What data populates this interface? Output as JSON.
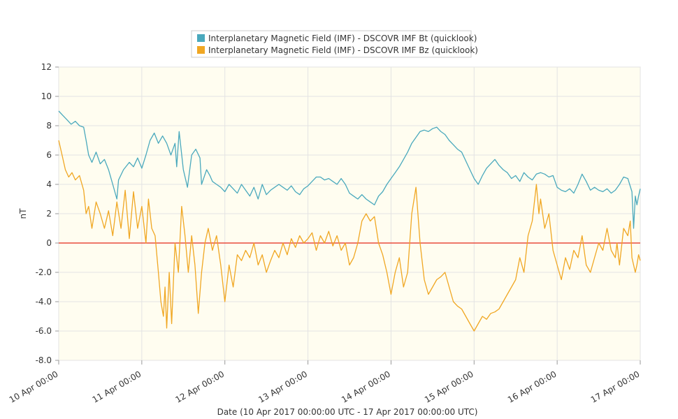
{
  "legend": {
    "items": [
      {
        "label": "Interplanetary Magnetic Field (IMF) - DSCOVR IMF Bt (quicklook)",
        "color": "#4aa9bd"
      },
      {
        "label": "Interplanetary Magnetic Field (IMF) - DSCOVR IMF Bz (quicklook)",
        "color": "#f0a723"
      }
    ]
  },
  "chart_data": {
    "type": "line",
    "xlabel": "Date (10 Apr 2017 00:00:00 UTC - 17 Apr 2017 00:00:00 UTC)",
    "ylabel": "nT",
    "ylim": [
      -8,
      12
    ],
    "xlim": [
      0,
      7
    ],
    "x_unit": "days from 10 Apr 2017 00:00 UTC",
    "x_ticks": [
      0,
      1,
      2,
      3,
      4,
      5,
      6,
      7
    ],
    "x_tick_labels": [
      "10 Apr 00:00",
      "11 Apr 00:00",
      "12 Apr 00:00",
      "13 Apr 00:00",
      "14 Apr 00:00",
      "15 Apr 00:00",
      "16 Apr 00:00",
      "17 Apr 00:00"
    ],
    "y_ticks": [
      12,
      10,
      8,
      6,
      4,
      2,
      0,
      -2,
      -4,
      -6,
      -8
    ],
    "y_tick_labels": [
      "12",
      "10",
      "8",
      "6",
      "4",
      "2",
      "0",
      "-2.0",
      "-4.0",
      "-6.0",
      "-8.0"
    ],
    "grid": true,
    "background": "#fffdf0",
    "zero_line_color": "#e84b3c",
    "legend_position": "top-center",
    "series": [
      {
        "name": "Interplanetary Magnetic Field (IMF) - DSCOVR IMF Bt (quicklook)",
        "color": "#4aa9bd",
        "points": [
          [
            0.0,
            9.0
          ],
          [
            0.05,
            8.7
          ],
          [
            0.1,
            8.4
          ],
          [
            0.15,
            8.1
          ],
          [
            0.2,
            8.3
          ],
          [
            0.25,
            8.0
          ],
          [
            0.3,
            7.9
          ],
          [
            0.33,
            7.0
          ],
          [
            0.36,
            6.0
          ],
          [
            0.4,
            5.5
          ],
          [
            0.45,
            6.2
          ],
          [
            0.5,
            5.4
          ],
          [
            0.55,
            5.7
          ],
          [
            0.6,
            5.0
          ],
          [
            0.65,
            4.0
          ],
          [
            0.7,
            3.0
          ],
          [
            0.72,
            4.3
          ],
          [
            0.78,
            5.0
          ],
          [
            0.85,
            5.5
          ],
          [
            0.9,
            5.2
          ],
          [
            0.95,
            5.8
          ],
          [
            1.0,
            5.1
          ],
          [
            1.05,
            6.0
          ],
          [
            1.1,
            7.0
          ],
          [
            1.15,
            7.5
          ],
          [
            1.2,
            6.8
          ],
          [
            1.25,
            7.3
          ],
          [
            1.3,
            6.8
          ],
          [
            1.35,
            6.0
          ],
          [
            1.4,
            6.8
          ],
          [
            1.42,
            5.2
          ],
          [
            1.45,
            7.6
          ],
          [
            1.5,
            5.0
          ],
          [
            1.55,
            3.8
          ],
          [
            1.6,
            6.0
          ],
          [
            1.65,
            6.4
          ],
          [
            1.7,
            5.8
          ],
          [
            1.72,
            4.0
          ],
          [
            1.78,
            5.0
          ],
          [
            1.82,
            4.6
          ],
          [
            1.85,
            4.2
          ],
          [
            1.9,
            4.0
          ],
          [
            1.95,
            3.8
          ],
          [
            2.0,
            3.5
          ],
          [
            2.05,
            4.0
          ],
          [
            2.1,
            3.7
          ],
          [
            2.15,
            3.4
          ],
          [
            2.2,
            4.0
          ],
          [
            2.25,
            3.6
          ],
          [
            2.3,
            3.2
          ],
          [
            2.35,
            3.8
          ],
          [
            2.4,
            3.0
          ],
          [
            2.45,
            4.0
          ],
          [
            2.5,
            3.3
          ],
          [
            2.55,
            3.6
          ],
          [
            2.6,
            3.8
          ],
          [
            2.65,
            4.0
          ],
          [
            2.7,
            3.8
          ],
          [
            2.75,
            3.6
          ],
          [
            2.8,
            3.9
          ],
          [
            2.85,
            3.5
          ],
          [
            2.9,
            3.3
          ],
          [
            2.95,
            3.7
          ],
          [
            3.0,
            3.9
          ],
          [
            3.05,
            4.2
          ],
          [
            3.1,
            4.5
          ],
          [
            3.15,
            4.5
          ],
          [
            3.2,
            4.3
          ],
          [
            3.25,
            4.4
          ],
          [
            3.3,
            4.2
          ],
          [
            3.35,
            4.0
          ],
          [
            3.4,
            4.4
          ],
          [
            3.45,
            4.0
          ],
          [
            3.5,
            3.4
          ],
          [
            3.55,
            3.2
          ],
          [
            3.6,
            3.0
          ],
          [
            3.65,
            3.3
          ],
          [
            3.7,
            3.0
          ],
          [
            3.75,
            2.8
          ],
          [
            3.8,
            2.6
          ],
          [
            3.85,
            3.2
          ],
          [
            3.9,
            3.5
          ],
          [
            3.95,
            4.0
          ],
          [
            4.0,
            4.4
          ],
          [
            4.05,
            4.8
          ],
          [
            4.1,
            5.2
          ],
          [
            4.15,
            5.7
          ],
          [
            4.2,
            6.2
          ],
          [
            4.25,
            6.8
          ],
          [
            4.3,
            7.2
          ],
          [
            4.35,
            7.6
          ],
          [
            4.4,
            7.7
          ],
          [
            4.45,
            7.6
          ],
          [
            4.5,
            7.8
          ],
          [
            4.55,
            7.9
          ],
          [
            4.6,
            7.6
          ],
          [
            4.65,
            7.4
          ],
          [
            4.7,
            7.0
          ],
          [
            4.75,
            6.7
          ],
          [
            4.8,
            6.4
          ],
          [
            4.85,
            6.2
          ],
          [
            4.9,
            5.6
          ],
          [
            4.95,
            5.0
          ],
          [
            5.0,
            4.4
          ],
          [
            5.05,
            4.0
          ],
          [
            5.1,
            4.6
          ],
          [
            5.15,
            5.1
          ],
          [
            5.2,
            5.4
          ],
          [
            5.25,
            5.7
          ],
          [
            5.3,
            5.3
          ],
          [
            5.35,
            5.0
          ],
          [
            5.4,
            4.8
          ],
          [
            5.45,
            4.4
          ],
          [
            5.5,
            4.6
          ],
          [
            5.55,
            4.2
          ],
          [
            5.6,
            4.8
          ],
          [
            5.65,
            4.5
          ],
          [
            5.7,
            4.3
          ],
          [
            5.75,
            4.7
          ],
          [
            5.8,
            4.8
          ],
          [
            5.85,
            4.7
          ],
          [
            5.9,
            4.5
          ],
          [
            5.95,
            4.6
          ],
          [
            6.0,
            3.8
          ],
          [
            6.05,
            3.6
          ],
          [
            6.1,
            3.5
          ],
          [
            6.15,
            3.7
          ],
          [
            6.2,
            3.4
          ],
          [
            6.25,
            4.0
          ],
          [
            6.3,
            4.7
          ],
          [
            6.35,
            4.2
          ],
          [
            6.4,
            3.6
          ],
          [
            6.45,
            3.8
          ],
          [
            6.5,
            3.6
          ],
          [
            6.55,
            3.5
          ],
          [
            6.6,
            3.7
          ],
          [
            6.65,
            3.4
          ],
          [
            6.7,
            3.6
          ],
          [
            6.75,
            4.0
          ],
          [
            6.8,
            4.5
          ],
          [
            6.85,
            4.4
          ],
          [
            6.9,
            3.5
          ],
          [
            6.92,
            1.0
          ],
          [
            6.94,
            3.2
          ],
          [
            6.96,
            2.6
          ],
          [
            6.98,
            3.2
          ],
          [
            7.0,
            3.7
          ]
        ]
      },
      {
        "name": "Interplanetary Magnetic Field (IMF) - DSCOVR IMF Bz (quicklook)",
        "color": "#f0a723",
        "points": [
          [
            0.0,
            7.0
          ],
          [
            0.04,
            6.0
          ],
          [
            0.08,
            5.0
          ],
          [
            0.12,
            4.5
          ],
          [
            0.16,
            4.8
          ],
          [
            0.2,
            4.3
          ],
          [
            0.25,
            4.6
          ],
          [
            0.3,
            3.6
          ],
          [
            0.33,
            2.0
          ],
          [
            0.36,
            2.5
          ],
          [
            0.4,
            1.0
          ],
          [
            0.45,
            2.8
          ],
          [
            0.5,
            2.0
          ],
          [
            0.55,
            1.0
          ],
          [
            0.6,
            2.2
          ],
          [
            0.65,
            0.5
          ],
          [
            0.7,
            2.8
          ],
          [
            0.75,
            1.0
          ],
          [
            0.8,
            3.6
          ],
          [
            0.85,
            0.3
          ],
          [
            0.9,
            3.5
          ],
          [
            0.95,
            1.0
          ],
          [
            1.0,
            2.5
          ],
          [
            1.05,
            0.0
          ],
          [
            1.08,
            3.0
          ],
          [
            1.12,
            1.0
          ],
          [
            1.16,
            0.5
          ],
          [
            1.2,
            -2.0
          ],
          [
            1.23,
            -4.0
          ],
          [
            1.26,
            -5.0
          ],
          [
            1.28,
            -3.0
          ],
          [
            1.3,
            -5.8
          ],
          [
            1.33,
            -2.0
          ],
          [
            1.36,
            -5.5
          ],
          [
            1.4,
            0.0
          ],
          [
            1.44,
            -2.0
          ],
          [
            1.48,
            2.5
          ],
          [
            1.52,
            0.5
          ],
          [
            1.56,
            -2.0
          ],
          [
            1.6,
            0.5
          ],
          [
            1.64,
            -1.5
          ],
          [
            1.68,
            -4.8
          ],
          [
            1.72,
            -2.0
          ],
          [
            1.76,
            0.0
          ],
          [
            1.8,
            1.0
          ],
          [
            1.85,
            -0.5
          ],
          [
            1.9,
            0.5
          ],
          [
            1.95,
            -1.5
          ],
          [
            2.0,
            -4.0
          ],
          [
            2.05,
            -1.5
          ],
          [
            2.1,
            -3.0
          ],
          [
            2.15,
            -0.8
          ],
          [
            2.2,
            -1.2
          ],
          [
            2.25,
            -0.5
          ],
          [
            2.3,
            -1.0
          ],
          [
            2.35,
            0.0
          ],
          [
            2.4,
            -1.5
          ],
          [
            2.45,
            -0.8
          ],
          [
            2.5,
            -2.0
          ],
          [
            2.55,
            -1.2
          ],
          [
            2.6,
            -0.5
          ],
          [
            2.65,
            -1.0
          ],
          [
            2.7,
            0.0
          ],
          [
            2.75,
            -0.8
          ],
          [
            2.8,
            0.3
          ],
          [
            2.85,
            -0.3
          ],
          [
            2.9,
            0.5
          ],
          [
            2.95,
            0.0
          ],
          [
            3.0,
            0.3
          ],
          [
            3.05,
            0.7
          ],
          [
            3.1,
            -0.5
          ],
          [
            3.15,
            0.5
          ],
          [
            3.2,
            0.0
          ],
          [
            3.25,
            0.8
          ],
          [
            3.3,
            -0.2
          ],
          [
            3.35,
            0.5
          ],
          [
            3.4,
            -0.5
          ],
          [
            3.45,
            0.0
          ],
          [
            3.5,
            -1.5
          ],
          [
            3.55,
            -1.0
          ],
          [
            3.6,
            0.0
          ],
          [
            3.65,
            1.5
          ],
          [
            3.7,
            2.0
          ],
          [
            3.75,
            1.5
          ],
          [
            3.8,
            1.8
          ],
          [
            3.85,
            0.0
          ],
          [
            3.9,
            -0.8
          ],
          [
            3.95,
            -2.0
          ],
          [
            4.0,
            -3.5
          ],
          [
            4.05,
            -2.0
          ],
          [
            4.1,
            -1.0
          ],
          [
            4.15,
            -3.0
          ],
          [
            4.2,
            -2.0
          ],
          [
            4.25,
            2.0
          ],
          [
            4.3,
            3.8
          ],
          [
            4.35,
            0.0
          ],
          [
            4.4,
            -2.5
          ],
          [
            4.45,
            -3.5
          ],
          [
            4.5,
            -3.0
          ],
          [
            4.55,
            -2.5
          ],
          [
            4.6,
            -2.3
          ],
          [
            4.65,
            -2.0
          ],
          [
            4.7,
            -3.0
          ],
          [
            4.75,
            -4.0
          ],
          [
            4.8,
            -4.3
          ],
          [
            4.85,
            -4.5
          ],
          [
            4.9,
            -5.0
          ],
          [
            4.95,
            -5.5
          ],
          [
            5.0,
            -6.0
          ],
          [
            5.05,
            -5.5
          ],
          [
            5.1,
            -5.0
          ],
          [
            5.15,
            -5.2
          ],
          [
            5.2,
            -4.8
          ],
          [
            5.25,
            -4.7
          ],
          [
            5.3,
            -4.5
          ],
          [
            5.35,
            -4.0
          ],
          [
            5.4,
            -3.5
          ],
          [
            5.45,
            -3.0
          ],
          [
            5.5,
            -2.5
          ],
          [
            5.55,
            -1.0
          ],
          [
            5.6,
            -2.0
          ],
          [
            5.65,
            0.5
          ],
          [
            5.7,
            1.5
          ],
          [
            5.75,
            4.0
          ],
          [
            5.78,
            2.0
          ],
          [
            5.8,
            3.0
          ],
          [
            5.85,
            1.0
          ],
          [
            5.9,
            2.0
          ],
          [
            5.95,
            -0.5
          ],
          [
            6.0,
            -1.5
          ],
          [
            6.05,
            -2.5
          ],
          [
            6.1,
            -1.0
          ],
          [
            6.15,
            -1.8
          ],
          [
            6.2,
            -0.5
          ],
          [
            6.25,
            -1.0
          ],
          [
            6.3,
            0.5
          ],
          [
            6.35,
            -1.5
          ],
          [
            6.4,
            -2.0
          ],
          [
            6.45,
            -1.0
          ],
          [
            6.5,
            0.0
          ],
          [
            6.55,
            -0.5
          ],
          [
            6.6,
            1.0
          ],
          [
            6.65,
            -0.5
          ],
          [
            6.7,
            -1.0
          ],
          [
            6.72,
            0.0
          ],
          [
            6.75,
            -1.5
          ],
          [
            6.8,
            1.0
          ],
          [
            6.85,
            0.5
          ],
          [
            6.88,
            1.5
          ],
          [
            6.9,
            -1.0
          ],
          [
            6.92,
            -1.5
          ],
          [
            6.94,
            -2.0
          ],
          [
            6.96,
            -1.5
          ],
          [
            6.98,
            -0.8
          ],
          [
            7.0,
            -1.2
          ]
        ]
      }
    ]
  }
}
